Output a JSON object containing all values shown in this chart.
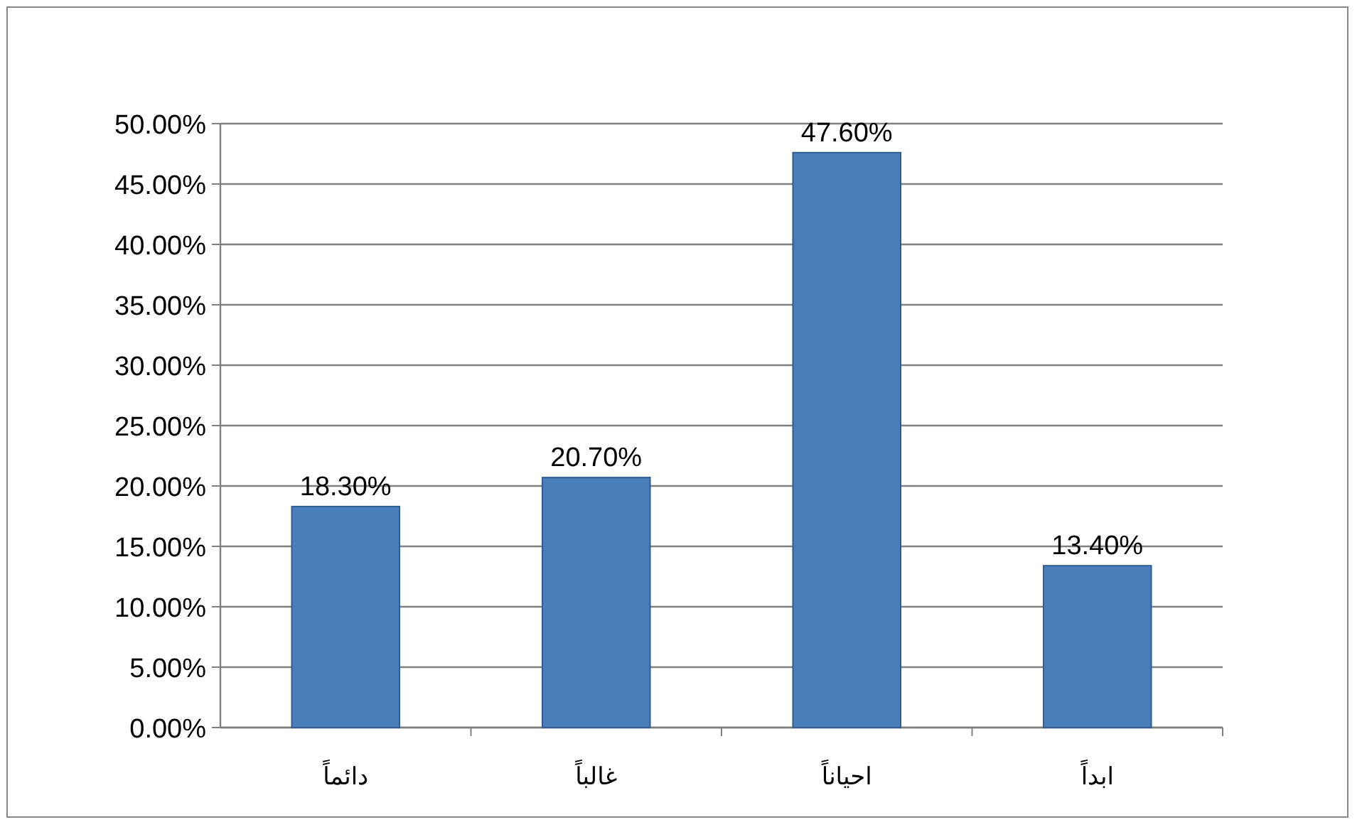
{
  "chart_data": {
    "type": "bar",
    "categories": [
      "دائماً",
      "غالباً",
      "احياناً",
      "ابداً"
    ],
    "values": [
      18.3,
      20.7,
      47.6,
      13.4
    ],
    "value_labels": [
      "18.30%",
      "20.70%",
      "47.60%",
      "13.40%"
    ],
    "color": "#4a7ebb",
    "ylim": [
      0,
      50
    ],
    "yticks": [
      {
        "value": 0,
        "label": "0.00%"
      },
      {
        "value": 5,
        "label": "5.00%"
      },
      {
        "value": 10,
        "label": "10.00%"
      },
      {
        "value": 15,
        "label": "15.00%"
      },
      {
        "value": 20,
        "label": "20.00%"
      },
      {
        "value": 25,
        "label": "25.00%"
      },
      {
        "value": 30,
        "label": "30.00%"
      },
      {
        "value": 35,
        "label": "35.00%"
      },
      {
        "value": 40,
        "label": "40.00%"
      },
      {
        "value": 45,
        "label": "45.00%"
      },
      {
        "value": 50,
        "label": "50.00%"
      }
    ],
    "grid": "y"
  }
}
